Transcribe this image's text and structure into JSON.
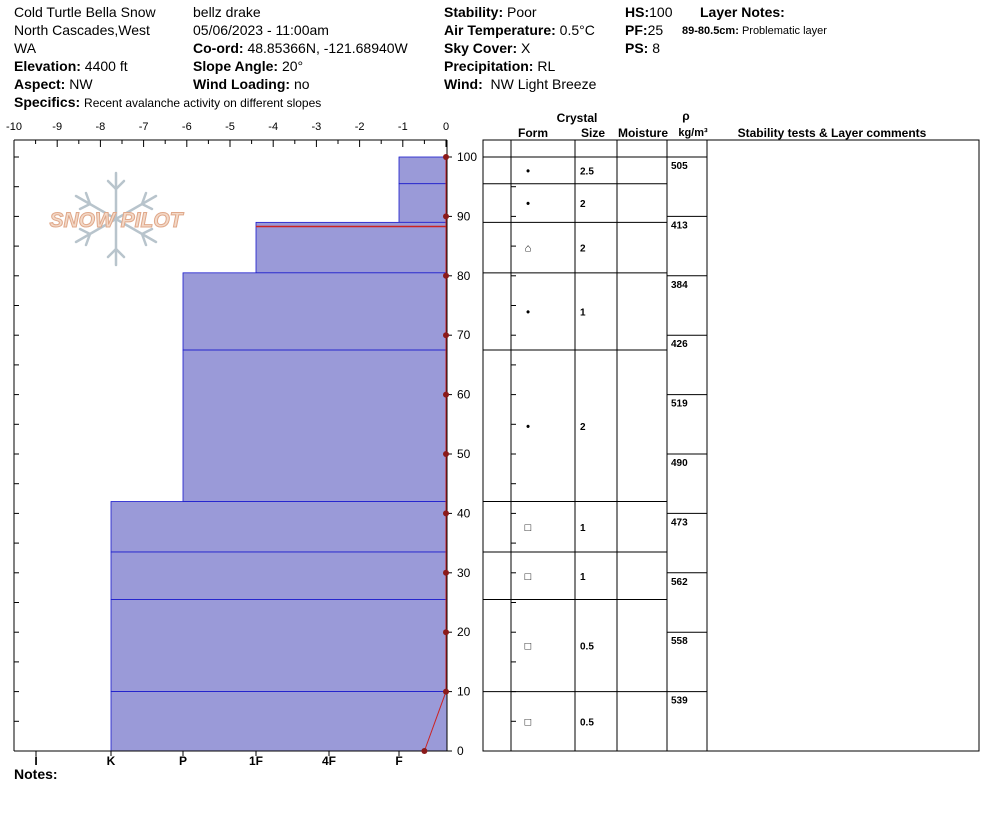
{
  "site": {
    "name": "Cold Turtle Bella Snow",
    "range_line1": "North Cascades,West",
    "range_line2": "WA",
    "elevation_label": "Elevation:",
    "elevation": "4400 ft",
    "aspect_label": "Aspect:",
    "aspect": "NW",
    "specifics_label": "Specifics:",
    "specifics": "Recent avalanche activity on different slopes"
  },
  "observer": {
    "name": "bellz drake",
    "datetime": "05/06/2023 - 11:00am",
    "coord_label": "Co-ord:",
    "coord": "48.85366N, -121.68940W",
    "slope_label": "Slope Angle:",
    "slope": "20°",
    "wind_loading_label": "Wind Loading:",
    "wind_loading": "no"
  },
  "conditions": {
    "stability_label": "Stability:",
    "stability": "Poor",
    "air_temp_label": "Air Temperature:",
    "air_temp": "0.5°C",
    "sky_label": "Sky Cover:",
    "sky": "X",
    "precip_label": "Precipitation:",
    "precip": "RL",
    "wind_label": "Wind:",
    "wind": "NW Light Breeze"
  },
  "depths": {
    "hs_label": "HS:",
    "hs": "100",
    "pf_label": "PF:",
    "pf": "25",
    "ps_label": "PS:",
    "ps": "8"
  },
  "layer_notes": {
    "title": "Layer Notes:",
    "items": [
      {
        "range": "89-80.5cm:",
        "text": "Problematic layer"
      }
    ]
  },
  "notes_label": "Notes:",
  "logo_text": "SNOW PILOT",
  "table_headers": {
    "crystal": "Crystal",
    "form": "Form",
    "size": "Size",
    "moisture": "Moisture",
    "rho": "ρ",
    "density_unit": "kg/m³",
    "comments": "Stability tests & Layer comments"
  },
  "colors": {
    "layer_fill": "#9a9ad8",
    "layer_line": "#1a1acc",
    "problem_line": "#cc2222",
    "temp_line": "#cc2222",
    "temp_marker": "#8b1a1a"
  },
  "chart_data": {
    "type": "snow_profile",
    "temperature_axis": {
      "label_ticks": [
        -10,
        -9,
        -8,
        -7,
        -6,
        -5,
        -4,
        -3,
        -2,
        -1,
        0
      ],
      "range": [
        -10,
        0
      ]
    },
    "depth_axis": {
      "range": [
        0,
        100
      ],
      "ticks": [
        0,
        10,
        20,
        30,
        40,
        50,
        60,
        70,
        80,
        90,
        100
      ]
    },
    "hardness_axis": {
      "ticks": [
        "I",
        "K",
        "P",
        "1F",
        "4F",
        "F"
      ]
    },
    "hardness_layers": [
      {
        "top": 100,
        "bottom": 95.5,
        "hardness": "F"
      },
      {
        "top": 95.5,
        "bottom": 89,
        "hardness": "F"
      },
      {
        "top": 89,
        "bottom": 80.5,
        "hardness": "1F"
      },
      {
        "top": 80.5,
        "bottom": 67.5,
        "hardness": "P"
      },
      {
        "top": 67.5,
        "bottom": 42,
        "hardness": "P"
      },
      {
        "top": 42,
        "bottom": 33.5,
        "hardness": "K"
      },
      {
        "top": 33.5,
        "bottom": 25.5,
        "hardness": "K"
      },
      {
        "top": 25.5,
        "bottom": 10,
        "hardness": "K"
      },
      {
        "top": 10,
        "bottom": 0,
        "hardness": "K"
      }
    ],
    "problem_layer_depth": 88.3,
    "crystal_layers": [
      {
        "top": 100,
        "bottom": 95.5,
        "form": "•",
        "size": "2.5"
      },
      {
        "top": 95.5,
        "bottom": 89,
        "form": "•",
        "size": "2"
      },
      {
        "top": 89,
        "bottom": 80.5,
        "form": "⌂",
        "size": "2"
      },
      {
        "top": 80.5,
        "bottom": 67.5,
        "form": "•",
        "size": "1"
      },
      {
        "top": 67.5,
        "bottom": 42,
        "form": "•",
        "size": "2"
      },
      {
        "top": 42,
        "bottom": 33.5,
        "form": "□",
        "size": "1"
      },
      {
        "top": 33.5,
        "bottom": 25.5,
        "form": "□",
        "size": "1"
      },
      {
        "top": 25.5,
        "bottom": 10,
        "form": "□",
        "size": "0.5"
      },
      {
        "top": 10,
        "bottom": 0,
        "form": "□",
        "size": "0.5"
      }
    ],
    "densities": [
      {
        "top": 100,
        "bottom": 90,
        "value": "505"
      },
      {
        "top": 90,
        "bottom": 80,
        "value": "413"
      },
      {
        "top": 80,
        "bottom": 70,
        "value": "384"
      },
      {
        "top": 70,
        "bottom": 60,
        "value": "426"
      },
      {
        "top": 60,
        "bottom": 50,
        "value": "519"
      },
      {
        "top": 50,
        "bottom": 40,
        "value": "490"
      },
      {
        "top": 40,
        "bottom": 30,
        "value": "473"
      },
      {
        "top": 30,
        "bottom": 20,
        "value": "562"
      },
      {
        "top": 20,
        "bottom": 10,
        "value": "558"
      },
      {
        "top": 10,
        "bottom": 0,
        "value": "539"
      }
    ],
    "temperature_profile": [
      {
        "depth": 100,
        "temp": 0
      },
      {
        "depth": 90,
        "temp": 0
      },
      {
        "depth": 80,
        "temp": 0
      },
      {
        "depth": 70,
        "temp": 0
      },
      {
        "depth": 60,
        "temp": 0
      },
      {
        "depth": 50,
        "temp": 0
      },
      {
        "depth": 40,
        "temp": 0
      },
      {
        "depth": 30,
        "temp": 0
      },
      {
        "depth": 20,
        "temp": 0
      },
      {
        "depth": 10,
        "temp": 0
      },
      {
        "depth": 0,
        "temp": -0.5
      }
    ]
  }
}
